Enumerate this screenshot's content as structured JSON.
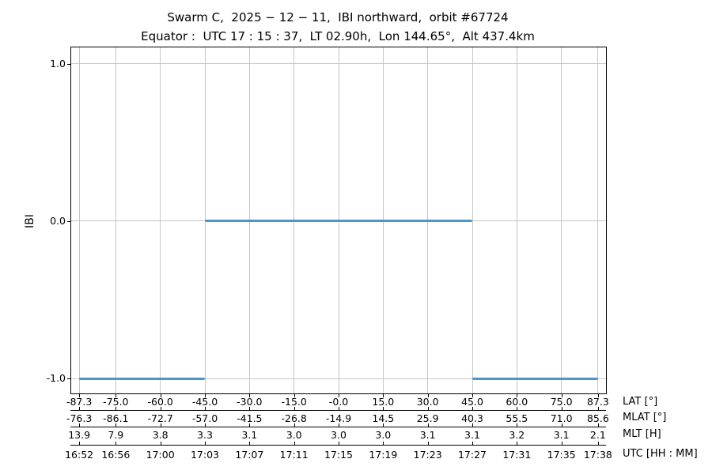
{
  "title": {
    "line1": "Swarm C,  2025 − 12 − 11,  IBI northward,  orbit #67724",
    "line2": "Equator :  UTC 17 : 15 : 37,  LT 02.90h,  Lon 144.65°,  Alt 437.4km"
  },
  "colors": {
    "line": "#4c96cc",
    "grid": "#c6c6c6",
    "spine": "#000000",
    "text": "#000000"
  },
  "y_axis": {
    "label": "IBI",
    "tick_labels": [
      "1.0",
      "0.0",
      "-1.0"
    ],
    "tick_values": [
      1.0,
      0.0,
      -1.0
    ]
  },
  "x_axes": [
    {
      "unit_label": "LAT [°]",
      "tick_labels": [
        "-87.3",
        "-75.0",
        "-60.0",
        "-45.0",
        "-30.0",
        "-15.0",
        "-0.0",
        "15.0",
        "30.0",
        "45.0",
        "60.0",
        "75.0",
        "87.3"
      ]
    },
    {
      "unit_label": "MLAT [°]",
      "tick_labels": [
        "-76.3",
        "-86.1",
        "-72.7",
        "-57.0",
        "-41.5",
        "-26.8",
        "-14.9",
        "14.5",
        "25.9",
        "40.3",
        "55.5",
        "71.0",
        "85.6"
      ]
    },
    {
      "unit_label": "MLT [H]",
      "tick_labels": [
        "13.9",
        "7.9",
        "3.8",
        "3.3",
        "3.1",
        "3.0",
        "3.0",
        "3.0",
        "3.1",
        "3.1",
        "3.2",
        "3.1",
        "2.1"
      ]
    },
    {
      "unit_label": "UTC [HH : MM]",
      "tick_labels": [
        "16:52",
        "16:56",
        "17:00",
        "17:03",
        "17:07",
        "17:11",
        "17:15",
        "17:19",
        "17:23",
        "17:27",
        "17:31",
        "17:35",
        "17:38"
      ]
    }
  ],
  "chart_data": {
    "type": "line",
    "title": "Swarm C, 2025-12-11, IBI northward, orbit #67724",
    "subtitle": "Equator: UTC 17:15:37, LT 02.90h, Lon 144.65°, Alt 437.4km",
    "ylabel": "IBI",
    "ylim": [
      -1.095,
      1.105
    ],
    "yticks": [
      1.0,
      0.0,
      -1.0
    ],
    "xlim_lat": [
      -90,
      90
    ],
    "lat_ticks": [
      -87.3,
      -75.0,
      -60.0,
      -45.0,
      -30.0,
      -15.0,
      0.0,
      15.0,
      30.0,
      45.0,
      60.0,
      75.0,
      87.3
    ],
    "grid": true,
    "legend": "none",
    "series": [
      {
        "name": "IBI",
        "color": "#4c96cc",
        "segments": [
          {
            "value": -1,
            "lat_start": -87.3,
            "lat_end": -45.0
          },
          {
            "value": 0,
            "lat_start": -45.0,
            "lat_end": 45.0
          },
          {
            "value": -1,
            "lat_start": 45.0,
            "lat_end": 87.3
          }
        ]
      }
    ],
    "x_axis_rows": {
      "LAT [°]": [
        -87.3,
        -75.0,
        -60.0,
        -45.0,
        -30.0,
        -15.0,
        -0.0,
        15.0,
        30.0,
        45.0,
        60.0,
        75.0,
        87.3
      ],
      "MLAT [°]": [
        -76.3,
        -86.1,
        -72.7,
        -57.0,
        -41.5,
        -26.8,
        -14.9,
        14.5,
        25.9,
        40.3,
        55.5,
        71.0,
        85.6
      ],
      "MLT [H]": [
        13.9,
        7.9,
        3.8,
        3.3,
        3.1,
        3.0,
        3.0,
        3.0,
        3.1,
        3.1,
        3.2,
        3.1,
        2.1
      ],
      "UTC [HH : MM]": [
        "16:52",
        "16:56",
        "17:00",
        "17:03",
        "17:07",
        "17:11",
        "17:15",
        "17:19",
        "17:23",
        "17:27",
        "17:31",
        "17:35",
        "17:38"
      ]
    }
  }
}
